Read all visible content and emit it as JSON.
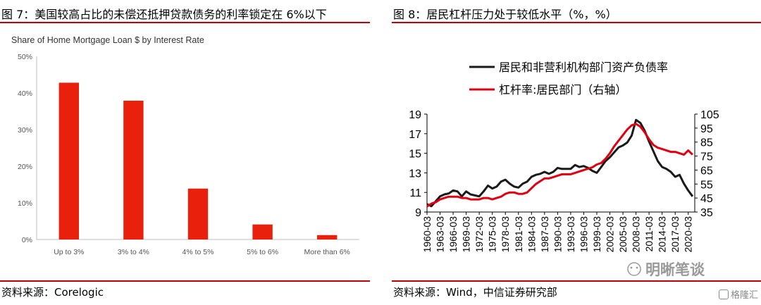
{
  "left": {
    "figure_title": "图 7：美国较高占比的未偿还抵押贷款债务的利率锁定在 6%以下",
    "source": "资料来源：Corelogic",
    "chart_data": {
      "type": "bar",
      "title": "Share of Home Mortgage Loan $ by Interest Rate",
      "categories": [
        "Up to 3%",
        "3% to 4%",
        "4% to 5%",
        "5% to 6%",
        "More than 6%"
      ],
      "values": [
        42.8,
        37.9,
        13.9,
        4.1,
        1.2
      ],
      "ylim": [
        0,
        50
      ],
      "yticks": [
        "0%",
        "10%",
        "20%",
        "30%",
        "40%",
        "50%"
      ],
      "bar_color": "#e8200c",
      "grid": false
    }
  },
  "right": {
    "figure_title": "图 8：居民杠杆压力处于较低水平（%，%）",
    "source": "资料来源：Wind，中信证券研究部",
    "watermark": "明晰笔谈",
    "corner_mark": "格隆汇",
    "chart_data": {
      "type": "line",
      "legend_position": "top",
      "x_ticks": [
        "1960-03",
        "1963-03",
        "1966-03",
        "1969-03",
        "1972-03",
        "1975-03",
        "1978-03",
        "1981-03",
        "1984-03",
        "1987-03",
        "1990-03",
        "1993-03",
        "1996-03",
        "1999-03",
        "2002-03",
        "2005-03",
        "2008-03",
        "2011-03",
        "2014-03",
        "2017-03",
        "2020-03"
      ],
      "y_left": {
        "range": [
          9,
          19
        ],
        "ticks": [
          "9",
          "11",
          "13",
          "15",
          "17",
          "19"
        ]
      },
      "y_right": {
        "range": [
          35,
          105
        ],
        "ticks": [
          "35",
          "45",
          "55",
          "65",
          "75",
          "85",
          "95",
          "105"
        ]
      },
      "series": [
        {
          "name": "居民和非营利机构部门资产负债率",
          "axis": "left",
          "color": "#1a1a1a",
          "points": [
            [
              1960,
              9.8
            ],
            [
              1961,
              9.6
            ],
            [
              1962,
              10.1
            ],
            [
              1963,
              10.6
            ],
            [
              1964,
              10.8
            ],
            [
              1965,
              10.9
            ],
            [
              1966,
              11.2
            ],
            [
              1967,
              11.1
            ],
            [
              1968,
              10.6
            ],
            [
              1969,
              11.1
            ],
            [
              1970,
              10.8
            ],
            [
              1971,
              10.7
            ],
            [
              1972,
              10.6
            ],
            [
              1973,
              11.1
            ],
            [
              1974,
              11.7
            ],
            [
              1975,
              11.4
            ],
            [
              1976,
              11.6
            ],
            [
              1977,
              12.1
            ],
            [
              1978,
              12.3
            ],
            [
              1979,
              11.9
            ],
            [
              1980,
              11.6
            ],
            [
              1981,
              11.5
            ],
            [
              1982,
              11.9
            ],
            [
              1983,
              12.1
            ],
            [
              1984,
              12.6
            ],
            [
              1985,
              12.8
            ],
            [
              1986,
              12.9
            ],
            [
              1987,
              13.1
            ],
            [
              1988,
              12.9
            ],
            [
              1989,
              13.1
            ],
            [
              1990,
              13.5
            ],
            [
              1991,
              13.4
            ],
            [
              1992,
              13.4
            ],
            [
              1993,
              13.4
            ],
            [
              1994,
              13.8
            ],
            [
              1995,
              13.6
            ],
            [
              1996,
              13.7
            ],
            [
              1997,
              13.5
            ],
            [
              1998,
              13.2
            ],
            [
              1999,
              13.0
            ],
            [
              2000,
              13.6
            ],
            [
              2001,
              14.2
            ],
            [
              2002,
              14.6
            ],
            [
              2003,
              15.1
            ],
            [
              2004,
              15.6
            ],
            [
              2005,
              15.8
            ],
            [
              2006,
              16.1
            ],
            [
              2007,
              16.8
            ],
            [
              2008,
              18.4
            ],
            [
              2009,
              18.1
            ],
            [
              2010,
              17.3
            ],
            [
              2011,
              16.2
            ],
            [
              2012,
              15.2
            ],
            [
              2013,
              14.2
            ],
            [
              2014,
              13.6
            ],
            [
              2015,
              13.4
            ],
            [
              2016,
              13.1
            ],
            [
              2017,
              12.6
            ],
            [
              2018,
              12.8
            ],
            [
              2019,
              11.9
            ],
            [
              2020,
              11.2
            ],
            [
              2021,
              10.6
            ]
          ]
        },
        {
          "name": "杠杆率:居民部门（右轴）",
          "axis": "right",
          "color": "#e0000f",
          "points": [
            [
              1960,
              39
            ],
            [
              1961,
              41
            ],
            [
              1962,
              42
            ],
            [
              1963,
              44
            ],
            [
              1964,
              45
            ],
            [
              1965,
              46
            ],
            [
              1966,
              46
            ],
            [
              1967,
              46
            ],
            [
              1968,
              45
            ],
            [
              1969,
              45
            ],
            [
              1970,
              44
            ],
            [
              1971,
              44
            ],
            [
              1972,
              44
            ],
            [
              1973,
              45
            ],
            [
              1974,
              45
            ],
            [
              1975,
              44
            ],
            [
              1976,
              45
            ],
            [
              1977,
              46
            ],
            [
              1978,
              48
            ],
            [
              1979,
              49
            ],
            [
              1980,
              49
            ],
            [
              1981,
              48
            ],
            [
              1982,
              48
            ],
            [
              1983,
              49
            ],
            [
              1984,
              52
            ],
            [
              1985,
              55
            ],
            [
              1986,
              57
            ],
            [
              1987,
              59
            ],
            [
              1988,
              59
            ],
            [
              1989,
              60
            ],
            [
              1990,
              61
            ],
            [
              1991,
              62
            ],
            [
              1992,
              62
            ],
            [
              1993,
              62
            ],
            [
              1994,
              63
            ],
            [
              1995,
              64
            ],
            [
              1996,
              65
            ],
            [
              1997,
              66
            ],
            [
              1998,
              67
            ],
            [
              1999,
              69
            ],
            [
              2000,
              70
            ],
            [
              2001,
              73
            ],
            [
              2002,
              77
            ],
            [
              2003,
              82
            ],
            [
              2004,
              86
            ],
            [
              2005,
              90
            ],
            [
              2006,
              94
            ],
            [
              2007,
              97
            ],
            [
              2008,
              98
            ],
            [
              2009,
              96
            ],
            [
              2010,
              92
            ],
            [
              2011,
              87
            ],
            [
              2012,
              83
            ],
            [
              2013,
              81
            ],
            [
              2014,
              80
            ],
            [
              2015,
              79
            ],
            [
              2016,
              78
            ],
            [
              2017,
              78
            ],
            [
              2018,
              77
            ],
            [
              2019,
              76
            ],
            [
              2020,
              79
            ],
            [
              2021,
              76
            ]
          ]
        }
      ]
    }
  }
}
